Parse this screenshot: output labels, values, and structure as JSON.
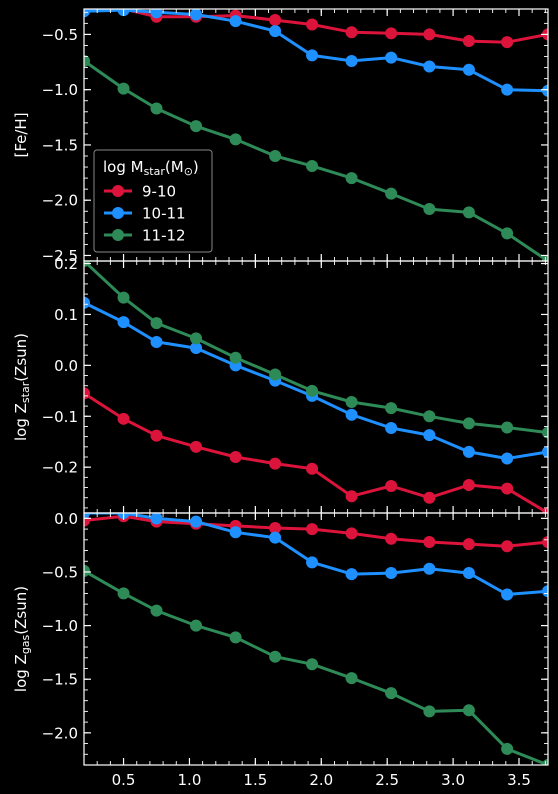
{
  "chart_data": {
    "type": "line",
    "x_ticks": [
      0.5,
      1.0,
      1.5,
      2.0,
      2.5,
      3.0,
      3.5
    ],
    "x_tick_labels": [
      "0.5",
      "1.0",
      "1.5",
      "2.0",
      "2.5",
      "3.0",
      "3.5"
    ],
    "xlim": [
      0.2,
      3.72
    ],
    "colors": {
      "9-10": "#dc143c",
      "10-11": "#1e90ff",
      "11-12": "#2e8b57",
      "background": "#000000",
      "axis": "#ffffff"
    },
    "legend": {
      "title_prefix": "log M",
      "title_sub": "star",
      "title_suffix": "(M",
      "title_end": ")",
      "title_symbol": "⊙",
      "entries": [
        "9-10",
        "10-11",
        "11-12"
      ],
      "placement": "lower-left"
    },
    "panels": [
      {
        "ylabel": "[Fe/H]",
        "ylabel_main": "[Fe/H]",
        "ylabel_sub": "",
        "ylabel_tail": "",
        "ylim": [
          -2.55,
          -0.27
        ],
        "y_ticks": [
          -0.5,
          -1.0,
          -1.5,
          -2.0,
          -2.5
        ],
        "y_tick_labels": [
          "−0.5",
          "−1.0",
          "−1.5",
          "−2.0",
          "−2.5"
        ],
        "series": [
          {
            "name": "9-10",
            "x": [
              0.2,
              0.5,
              0.75,
              1.05,
              1.35,
              1.65,
              1.93,
              2.23,
              2.53,
              2.82,
              3.12,
              3.41,
              3.72
            ],
            "y": [
              -0.28,
              -0.27,
              -0.34,
              -0.34,
              -0.33,
              -0.37,
              -0.41,
              -0.48,
              -0.49,
              -0.5,
              -0.56,
              -0.57,
              -0.5
            ]
          },
          {
            "name": "10-11",
            "x": [
              0.2,
              0.5,
              0.75,
              1.05,
              1.35,
              1.65,
              1.93,
              2.23,
              2.53,
              2.82,
              3.12,
              3.41,
              3.72
            ],
            "y": [
              -0.29,
              -0.28,
              -0.3,
              -0.32,
              -0.38,
              -0.47,
              -0.69,
              -0.74,
              -0.71,
              -0.79,
              -0.82,
              -1.0,
              -1.01
            ]
          },
          {
            "name": "11-12",
            "x": [
              0.2,
              0.5,
              0.75,
              1.05,
              1.35,
              1.65,
              1.93,
              2.23,
              2.53,
              2.82,
              3.12,
              3.41,
              3.72
            ],
            "y": [
              -0.74,
              -0.99,
              -1.17,
              -1.33,
              -1.45,
              -1.6,
              -1.69,
              -1.8,
              -1.94,
              -2.08,
              -2.11,
              -2.3,
              -2.55
            ]
          }
        ]
      },
      {
        "ylabel": "log Zstar(Zsun)",
        "ylabel_main": "log Z",
        "ylabel_sub": "star",
        "ylabel_tail": "(Zsun)",
        "ylim": [
          -0.29,
          0.205
        ],
        "y_ticks": [
          0.2,
          0.1,
          0.0,
          -0.1,
          -0.2
        ],
        "y_tick_labels": [
          "0.2",
          "0.1",
          "0.0",
          "−0.1",
          "−0.2"
        ],
        "series": [
          {
            "name": "9-10",
            "x": [
              0.2,
              0.5,
              0.75,
              1.05,
              1.35,
              1.65,
              1.93,
              2.23,
              2.53,
              2.82,
              3.12,
              3.41,
              3.72
            ],
            "y": [
              -0.055,
              -0.105,
              -0.138,
              -0.16,
              -0.18,
              -0.193,
              -0.203,
              -0.257,
              -0.237,
              -0.26,
              -0.235,
              -0.242,
              -0.29
            ]
          },
          {
            "name": "10-11",
            "x": [
              0.2,
              0.5,
              0.75,
              1.05,
              1.35,
              1.65,
              1.93,
              2.23,
              2.53,
              2.82,
              3.12,
              3.41,
              3.72
            ],
            "y": [
              0.123,
              0.085,
              0.046,
              0.034,
              0.0,
              -0.03,
              -0.06,
              -0.097,
              -0.123,
              -0.137,
              -0.17,
              -0.183,
              -0.17
            ]
          },
          {
            "name": "11-12",
            "x": [
              0.2,
              0.5,
              0.75,
              1.05,
              1.35,
              1.65,
              1.93,
              2.23,
              2.53,
              2.82,
              3.12,
              3.41,
              3.72
            ],
            "y": [
              0.205,
              0.133,
              0.083,
              0.053,
              0.015,
              -0.018,
              -0.05,
              -0.072,
              -0.084,
              -0.1,
              -0.114,
              -0.122,
              -0.132
            ]
          }
        ]
      },
      {
        "ylabel": "log Zgas(Zsun)",
        "ylabel_main": "log Z",
        "ylabel_sub": "gas",
        "ylabel_tail": "(Zsun)",
        "ylim": [
          -2.3,
          0.05
        ],
        "y_ticks": [
          0.0,
          -0.5,
          -1.0,
          -1.5,
          -2.0
        ],
        "y_tick_labels": [
          "0.0",
          "−0.5",
          "−1.0",
          "−1.5",
          "−2.0"
        ],
        "series": [
          {
            "name": "9-10",
            "x": [
              0.2,
              0.5,
              0.75,
              1.05,
              1.35,
              1.65,
              1.93,
              2.23,
              2.53,
              2.82,
              3.12,
              3.41,
              3.72
            ],
            "y": [
              -0.02,
              0.02,
              -0.03,
              -0.05,
              -0.07,
              -0.09,
              -0.1,
              -0.14,
              -0.19,
              -0.22,
              -0.24,
              -0.26,
              -0.22
            ]
          },
          {
            "name": "10-11",
            "x": [
              0.2,
              0.5,
              0.75,
              1.05,
              1.35,
              1.65,
              1.93,
              2.23,
              2.53,
              2.82,
              3.12,
              3.41,
              3.72
            ],
            "y": [
              0.05,
              0.05,
              0.0,
              -0.03,
              -0.13,
              -0.18,
              -0.41,
              -0.52,
              -0.51,
              -0.47,
              -0.51,
              -0.71,
              -0.68
            ]
          },
          {
            "name": "11-12",
            "x": [
              0.2,
              0.5,
              0.75,
              1.05,
              1.35,
              1.65,
              1.93,
              2.23,
              2.53,
              2.82,
              3.12,
              3.41,
              3.72
            ],
            "y": [
              -0.49,
              -0.7,
              -0.86,
              -1.0,
              -1.11,
              -1.29,
              -1.36,
              -1.49,
              -1.63,
              -1.8,
              -1.79,
              -2.15,
              -2.3
            ]
          }
        ]
      }
    ]
  }
}
